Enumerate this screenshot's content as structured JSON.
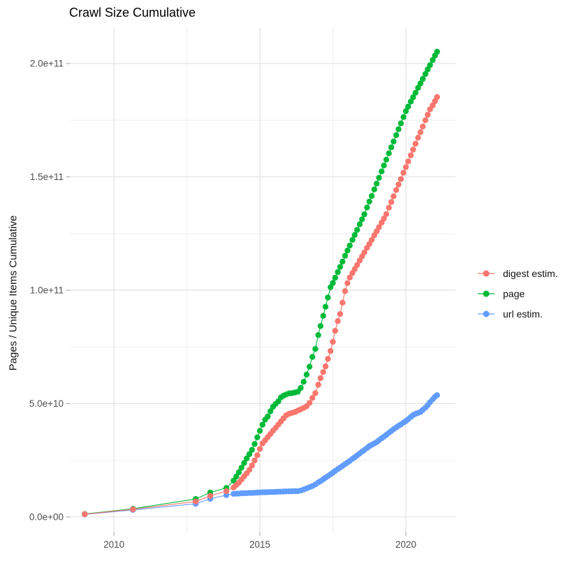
{
  "title": "Crawl Size Cumulative",
  "colors": {
    "digest": "#F8766D",
    "page": "#00BA38",
    "url": "#619CFF",
    "grid_major": "#E4E4E4",
    "grid_minor": "#F0F0F0",
    "tick_mark": "#999999",
    "tick_text": "#4D4D4D"
  },
  "chart_data": {
    "type": "scatter",
    "title": "Crawl Size Cumulative",
    "xlabel": "",
    "ylabel": "Pages / Unique Items Cumulative",
    "legend_position": "right",
    "grid": true,
    "value_unit": "items (values given in billions, 1e9)",
    "xlim": [
      2008.49,
      2021.7
    ],
    "ylim_e9": [
      -6.8,
      215.7
    ],
    "x_ticks": [
      2010,
      2015,
      2020
    ],
    "x_tick_labels": [
      "2010",
      "2015",
      "2020"
    ],
    "x_minor_ticks": [
      2012.5,
      2017.5
    ],
    "y_ticks_e9": [
      0,
      50,
      100,
      150,
      200
    ],
    "y_tick_labels": [
      "0.0e+00",
      "5.0e+10",
      "1.0e+11",
      "1.5e+11",
      "2.0e+11"
    ],
    "y_minor_ticks_e9": [
      25,
      75,
      125,
      175
    ],
    "x_years": [
      2009.0,
      2010.65,
      2012.8,
      2013.3,
      2013.85,
      2014.1,
      2014.19,
      2014.28,
      2014.37,
      2014.46,
      2014.55,
      2014.64,
      2014.73,
      2014.82,
      2014.91,
      2015.0,
      2015.09,
      2015.18,
      2015.27,
      2015.36,
      2015.45,
      2015.54,
      2015.63,
      2015.72,
      2015.81,
      2015.9,
      2016.0,
      2016.1,
      2016.2,
      2016.3,
      2016.4,
      2016.5,
      2016.6,
      2016.7,
      2016.8,
      2016.9,
      2017.0,
      2017.08,
      2017.17,
      2017.25,
      2017.33,
      2017.42,
      2017.5,
      2017.58,
      2017.67,
      2017.75,
      2017.83,
      2017.92,
      2018.0,
      2018.08,
      2018.17,
      2018.25,
      2018.33,
      2018.42,
      2018.5,
      2018.58,
      2018.67,
      2018.75,
      2018.83,
      2018.92,
      2019.0,
      2019.08,
      2019.17,
      2019.25,
      2019.33,
      2019.42,
      2019.5,
      2019.58,
      2019.67,
      2019.75,
      2019.83,
      2019.92,
      2020.0,
      2020.08,
      2020.17,
      2020.25,
      2020.33,
      2020.42,
      2020.5,
      2020.58,
      2020.67,
      2020.75,
      2020.83,
      2020.92,
      2021.0,
      2021.07
    ],
    "series": [
      {
        "name": "digest estim.",
        "color": "#F8766D",
        "values_e9": [
          1.2,
          3.4,
          6.8,
          9.3,
          11.4,
          13.0,
          14.1,
          15.1,
          16.5,
          17.9,
          19.2,
          20.8,
          22.7,
          24.9,
          27.2,
          30.0,
          32.4,
          33.8,
          35.2,
          36.6,
          38.0,
          39.3,
          40.7,
          42.1,
          43.5,
          44.8,
          45.5,
          45.9,
          46.3,
          46.9,
          47.5,
          48.1,
          48.8,
          50.3,
          52.5,
          54.6,
          58.3,
          61.2,
          63.9,
          66.4,
          69.7,
          73.2,
          77.2,
          82.1,
          86.4,
          89.5,
          94.5,
          99.6,
          103.1,
          105.6,
          107.6,
          109.3,
          111.1,
          113.1,
          114.9,
          116.7,
          118.7,
          120.4,
          122.2,
          124.2,
          126.0,
          127.8,
          129.8,
          131.6,
          133.6,
          136.4,
          138.9,
          141.4,
          144.2,
          146.6,
          149.0,
          151.8,
          154.3,
          156.8,
          159.5,
          162.0,
          164.6,
          167.3,
          169.7,
          172.2,
          175.0,
          177.4,
          179.8,
          181.5,
          183.4,
          185.2
        ]
      },
      {
        "name": "page",
        "color": "#00BA38",
        "values_e9": [
          1.3,
          3.6,
          7.9,
          10.8,
          12.8,
          16.0,
          17.8,
          19.7,
          21.7,
          23.8,
          25.8,
          27.7,
          29.6,
          32.2,
          35.1,
          38.0,
          40.7,
          42.9,
          44.3,
          46.6,
          48.6,
          49.9,
          51.0,
          52.7,
          53.5,
          54.0,
          54.5,
          54.6,
          54.9,
          55.2,
          56.9,
          59.6,
          62.8,
          66.3,
          70.6,
          74.1,
          80.2,
          84.2,
          88.7,
          92.7,
          96.8,
          101.3,
          103.2,
          105.5,
          108.0,
          110.3,
          112.6,
          115.2,
          117.5,
          119.7,
          122.2,
          124.4,
          126.6,
          129.1,
          131.3,
          133.5,
          136.5,
          139.1,
          141.6,
          144.5,
          147.0,
          149.6,
          152.4,
          155.0,
          157.6,
          160.4,
          163.0,
          165.6,
          168.4,
          171.0,
          173.6,
          176.4,
          179.0,
          181.0,
          183.2,
          185.1,
          187.1,
          189.3,
          191.2,
          193.2,
          195.4,
          197.4,
          199.3,
          201.5,
          203.5,
          205.2
        ]
      },
      {
        "name": "url estim.",
        "color": "#619CFF",
        "values_e9": [
          1.1,
          3.1,
          5.8,
          8.0,
          9.6,
          10.2,
          10.25,
          10.3,
          10.4,
          10.45,
          10.5,
          10.55,
          10.6,
          10.65,
          10.75,
          10.8,
          10.85,
          10.9,
          10.93,
          10.98,
          11.0,
          11.05,
          11.1,
          11.15,
          11.2,
          11.25,
          11.3,
          11.33,
          11.36,
          11.4,
          11.6,
          12.1,
          12.6,
          13.1,
          13.6,
          14.3,
          15.2,
          15.8,
          16.6,
          17.3,
          18.0,
          18.8,
          19.5,
          20.3,
          21.1,
          21.8,
          22.5,
          23.3,
          24.0,
          24.7,
          25.6,
          26.3,
          27.1,
          28.0,
          28.8,
          29.5,
          30.4,
          31.2,
          31.8,
          32.4,
          33.0,
          33.8,
          34.7,
          35.4,
          36.2,
          37.1,
          37.9,
          38.7,
          39.5,
          40.2,
          40.8,
          41.6,
          42.3,
          43.1,
          44.1,
          44.9,
          45.5,
          45.9,
          46.3,
          47.2,
          48.2,
          49.3,
          50.6,
          51.9,
          53.0,
          53.7
        ]
      }
    ]
  }
}
